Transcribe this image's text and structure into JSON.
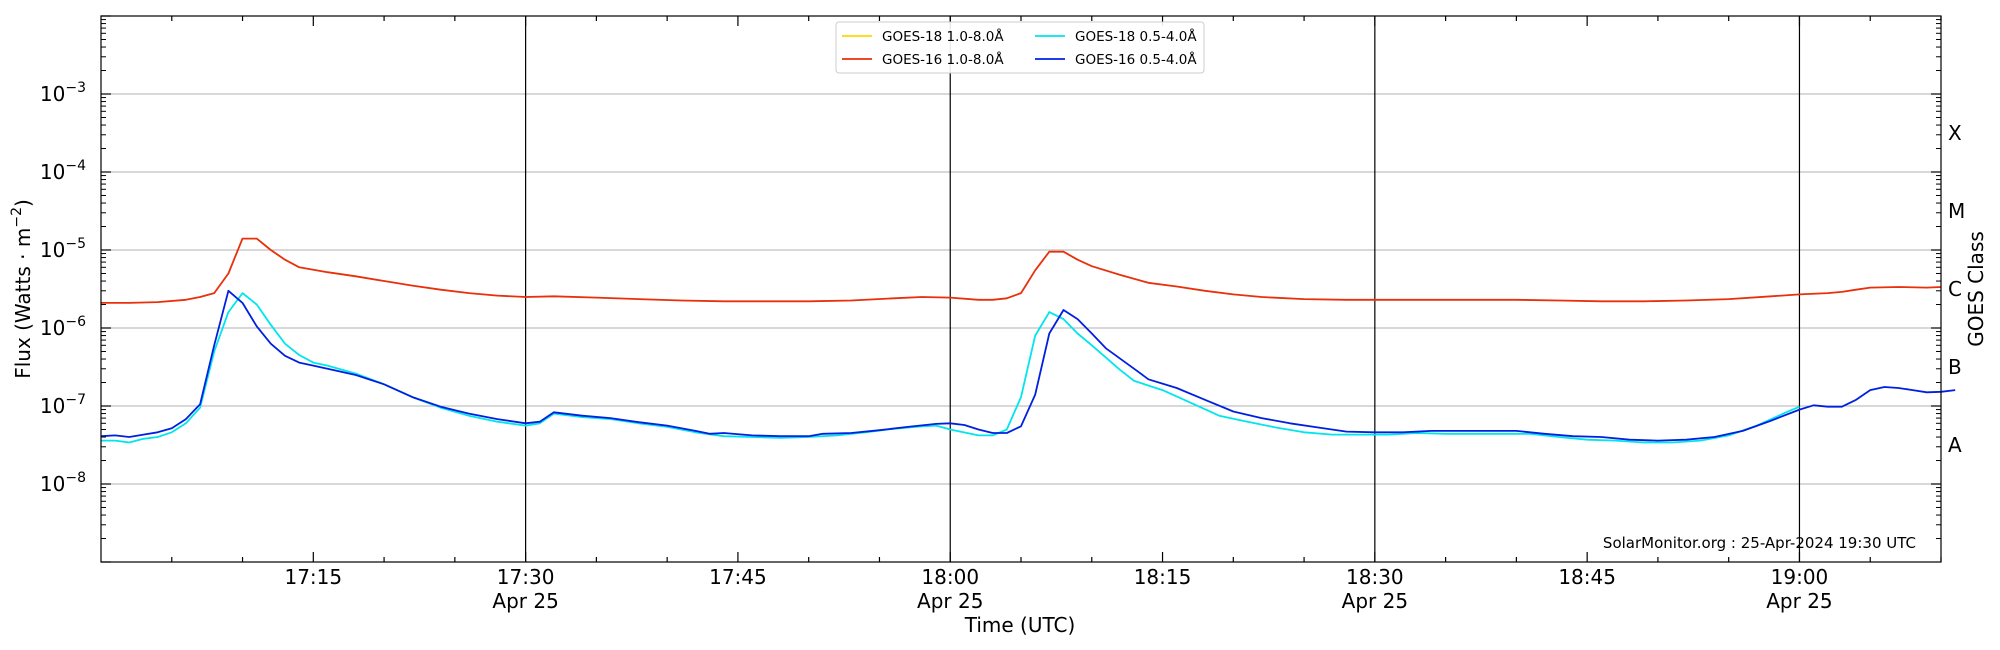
{
  "chart_data": {
    "type": "line",
    "title": "",
    "xlabel": "Time (UTC)",
    "ylabel": "Flux (Watts · m",
    "ylabel_sup": "−2",
    "ylabel_close": ")",
    "ylabel_right": "GOES Class",
    "yscale": "log",
    "ylim": [
      1e-09,
      0.01
    ],
    "xlim": [
      "17:03",
      "19:13"
    ],
    "x_tick_labels": [
      {
        "t": 15,
        "time": "17:15",
        "date": ""
      },
      {
        "t": 30,
        "time": "17:30",
        "date": "Apr 25"
      },
      {
        "t": 45,
        "time": "17:45",
        "date": ""
      },
      {
        "t": 60,
        "time": "18:00",
        "date": "Apr 25"
      },
      {
        "t": 75,
        "time": "18:15",
        "date": ""
      },
      {
        "t": 90,
        "time": "18:30",
        "date": "Apr 25"
      },
      {
        "t": 105,
        "time": "18:45",
        "date": ""
      },
      {
        "t": 120,
        "time": "19:00",
        "date": "Apr 25"
      }
    ],
    "y_tick_labels": [
      {
        "exp": -8,
        "base": "10",
        "sup": "−8"
      },
      {
        "exp": -7,
        "base": "10",
        "sup": "−7"
      },
      {
        "exp": -6,
        "base": "10",
        "sup": "−6"
      },
      {
        "exp": -5,
        "base": "10",
        "sup": "−5"
      },
      {
        "exp": -4,
        "base": "10",
        "sup": "−4"
      },
      {
        "exp": -3,
        "base": "10",
        "sup": "−3"
      }
    ],
    "goes_classes": [
      {
        "label": "A",
        "exp": -7.5
      },
      {
        "label": "B",
        "exp": -6.5
      },
      {
        "label": "C",
        "exp": -5.5
      },
      {
        "label": "M",
        "exp": -4.5
      },
      {
        "label": "X",
        "exp": -3.5
      }
    ],
    "vertical_lines": [
      30,
      60,
      90,
      120
    ],
    "annotation": "SolarMonitor.org : 25-Apr-2024 19:30 UTC",
    "grid": "horizontal",
    "legend_position": "top-center",
    "series": [
      {
        "name": "GOES-18 1.0-8.0Å",
        "color": "#ffd700",
        "points": []
      },
      {
        "name": "GOES-16 1.0-8.0Å",
        "color": "#e8300a",
        "points": [
          [
            0,
            2.1e-06
          ],
          [
            2,
            2.1e-06
          ],
          [
            4,
            2.15e-06
          ],
          [
            6,
            2.3e-06
          ],
          [
            7,
            2.5e-06
          ],
          [
            8,
            2.8e-06
          ],
          [
            9,
            5e-06
          ],
          [
            10,
            1.4e-05
          ],
          [
            11,
            1.4e-05
          ],
          [
            12,
            1e-05
          ],
          [
            13,
            7.5e-06
          ],
          [
            14,
            6e-06
          ],
          [
            16,
            5.2e-06
          ],
          [
            18,
            4.6e-06
          ],
          [
            20,
            4e-06
          ],
          [
            22,
            3.5e-06
          ],
          [
            24,
            3.1e-06
          ],
          [
            26,
            2.8e-06
          ],
          [
            28,
            2.6e-06
          ],
          [
            30,
            2.5e-06
          ],
          [
            32,
            2.55e-06
          ],
          [
            35,
            2.45e-06
          ],
          [
            38,
            2.35e-06
          ],
          [
            41,
            2.25e-06
          ],
          [
            44,
            2.2e-06
          ],
          [
            47,
            2.2e-06
          ],
          [
            50,
            2.2e-06
          ],
          [
            53,
            2.25e-06
          ],
          [
            56,
            2.4e-06
          ],
          [
            58,
            2.5e-06
          ],
          [
            60,
            2.45e-06
          ],
          [
            62,
            2.3e-06
          ],
          [
            63,
            2.3e-06
          ],
          [
            64,
            2.4e-06
          ],
          [
            65,
            2.8e-06
          ],
          [
            66,
            5.5e-06
          ],
          [
            67,
            9.5e-06
          ],
          [
            68,
            9.5e-06
          ],
          [
            69,
            7.5e-06
          ],
          [
            70,
            6.2e-06
          ],
          [
            72,
            4.8e-06
          ],
          [
            74,
            3.8e-06
          ],
          [
            76,
            3.4e-06
          ],
          [
            78,
            3e-06
          ],
          [
            80,
            2.7e-06
          ],
          [
            82,
            2.5e-06
          ],
          [
            85,
            2.35e-06
          ],
          [
            88,
            2.3e-06
          ],
          [
            91,
            2.3e-06
          ],
          [
            94,
            2.3e-06
          ],
          [
            97,
            2.3e-06
          ],
          [
            100,
            2.3e-06
          ],
          [
            103,
            2.25e-06
          ],
          [
            106,
            2.2e-06
          ],
          [
            109,
            2.2e-06
          ],
          [
            112,
            2.25e-06
          ],
          [
            115,
            2.35e-06
          ],
          [
            118,
            2.55e-06
          ],
          [
            120,
            2.7e-06
          ],
          [
            122,
            2.8e-06
          ],
          [
            123,
            2.9e-06
          ],
          [
            124,
            3.1e-06
          ],
          [
            125,
            3.3e-06
          ],
          [
            127,
            3.35e-06
          ],
          [
            129,
            3.3e-06
          ],
          [
            130,
            3.35e-06
          ]
        ]
      },
      {
        "name": "GOES-18 0.5-4.0Å",
        "color": "#00e5ee",
        "points": [
          [
            0,
            3.6e-08
          ],
          [
            1,
            3.6e-08
          ],
          [
            2,
            3.4e-08
          ],
          [
            3,
            3.8e-08
          ],
          [
            4,
            4e-08
          ],
          [
            5,
            4.6e-08
          ],
          [
            6,
            6e-08
          ],
          [
            7,
            9.5e-08
          ],
          [
            8,
            5e-07
          ],
          [
            9,
            1.6e-06
          ],
          [
            10,
            2.8e-06
          ],
          [
            11,
            2e-06
          ],
          [
            12,
            1.1e-06
          ],
          [
            13,
            6.3e-07
          ],
          [
            14,
            4.5e-07
          ],
          [
            15,
            3.6e-07
          ],
          [
            16,
            3.3e-07
          ],
          [
            18,
            2.6e-07
          ],
          [
            20,
            1.9e-07
          ],
          [
            22,
            1.3e-07
          ],
          [
            24,
            9.5e-08
          ],
          [
            26,
            7.5e-08
          ],
          [
            28,
            6.3e-08
          ],
          [
            30,
            5.6e-08
          ],
          [
            31,
            6e-08
          ],
          [
            32,
            8e-08
          ],
          [
            34,
            7.2e-08
          ],
          [
            36,
            6.8e-08
          ],
          [
            38,
            6e-08
          ],
          [
            40,
            5.4e-08
          ],
          [
            42,
            4.6e-08
          ],
          [
            44,
            4.1e-08
          ],
          [
            46,
            4e-08
          ],
          [
            48,
            3.9e-08
          ],
          [
            50,
            4e-08
          ],
          [
            52,
            4.2e-08
          ],
          [
            54,
            4.6e-08
          ],
          [
            56,
            5.1e-08
          ],
          [
            58,
            5.5e-08
          ],
          [
            59,
            5.6e-08
          ],
          [
            60,
            5e-08
          ],
          [
            62,
            4.2e-08
          ],
          [
            63,
            4.2e-08
          ],
          [
            64,
            5e-08
          ],
          [
            65,
            1.3e-07
          ],
          [
            66,
            8e-07
          ],
          [
            67,
            1.6e-06
          ],
          [
            68,
            1.3e-06
          ],
          [
            69,
            8.5e-07
          ],
          [
            70,
            6e-07
          ],
          [
            72,
            2.9e-07
          ],
          [
            73,
            2.1e-07
          ],
          [
            75,
            1.6e-07
          ],
          [
            77,
            1.1e-07
          ],
          [
            79,
            7.5e-08
          ],
          [
            81,
            6.3e-08
          ],
          [
            83,
            5.3e-08
          ],
          [
            85,
            4.6e-08
          ],
          [
            87,
            4.3e-08
          ],
          [
            89,
            4.3e-08
          ],
          [
            91,
            4.3e-08
          ],
          [
            93,
            4.5e-08
          ],
          [
            95,
            4.4e-08
          ],
          [
            97,
            4.4e-08
          ],
          [
            99,
            4.4e-08
          ],
          [
            101,
            4.4e-08
          ],
          [
            103,
            4e-08
          ],
          [
            105,
            3.7e-08
          ],
          [
            107,
            3.6e-08
          ],
          [
            109,
            3.4e-08
          ],
          [
            111,
            3.4e-08
          ],
          [
            113,
            3.6e-08
          ],
          [
            115,
            4.2e-08
          ],
          [
            117,
            5.6e-08
          ],
          [
            119,
            8.2e-08
          ],
          [
            120,
            9.8e-08
          ]
        ]
      },
      {
        "name": "GOES-16 0.5-4.0Å",
        "color": "#0020e0",
        "points": [
          [
            0,
            4.1e-08
          ],
          [
            1,
            4.2e-08
          ],
          [
            2,
            4e-08
          ],
          [
            3,
            4.3e-08
          ],
          [
            4,
            4.6e-08
          ],
          [
            5,
            5.2e-08
          ],
          [
            6,
            6.8e-08
          ],
          [
            7,
            1.05e-07
          ],
          [
            8,
            6e-07
          ],
          [
            9,
            3e-06
          ],
          [
            10,
            2.1e-06
          ],
          [
            11,
            1.05e-06
          ],
          [
            12,
            6.3e-07
          ],
          [
            13,
            4.4e-07
          ],
          [
            14,
            3.6e-07
          ],
          [
            15,
            3.3e-07
          ],
          [
            16,
            3e-07
          ],
          [
            18,
            2.5e-07
          ],
          [
            20,
            1.9e-07
          ],
          [
            22,
            1.3e-07
          ],
          [
            24,
            9.8e-08
          ],
          [
            26,
            8e-08
          ],
          [
            28,
            6.8e-08
          ],
          [
            30,
            6e-08
          ],
          [
            31,
            6.3e-08
          ],
          [
            32,
            8.3e-08
          ],
          [
            34,
            7.5e-08
          ],
          [
            36,
            7e-08
          ],
          [
            38,
            6.2e-08
          ],
          [
            40,
            5.6e-08
          ],
          [
            42,
            4.8e-08
          ],
          [
            43,
            4.4e-08
          ],
          [
            44,
            4.5e-08
          ],
          [
            46,
            4.2e-08
          ],
          [
            48,
            4.1e-08
          ],
          [
            50,
            4.1e-08
          ],
          [
            51,
            4.4e-08
          ],
          [
            53,
            4.5e-08
          ],
          [
            55,
            4.9e-08
          ],
          [
            57,
            5.4e-08
          ],
          [
            59,
            5.9e-08
          ],
          [
            60,
            6e-08
          ],
          [
            61,
            5.7e-08
          ],
          [
            62,
            5e-08
          ],
          [
            63,
            4.5e-08
          ],
          [
            64,
            4.5e-08
          ],
          [
            65,
            5.5e-08
          ],
          [
            66,
            1.4e-07
          ],
          [
            67,
            8.5e-07
          ],
          [
            68,
            1.7e-06
          ],
          [
            69,
            1.3e-06
          ],
          [
            70,
            8.5e-07
          ],
          [
            71,
            5.5e-07
          ],
          [
            73,
            3e-07
          ],
          [
            74,
            2.2e-07
          ],
          [
            76,
            1.7e-07
          ],
          [
            78,
            1.2e-07
          ],
          [
            80,
            8.5e-08
          ],
          [
            82,
            7e-08
          ],
          [
            84,
            6e-08
          ],
          [
            86,
            5.3e-08
          ],
          [
            88,
            4.7e-08
          ],
          [
            90,
            4.6e-08
          ],
          [
            92,
            4.6e-08
          ],
          [
            94,
            4.8e-08
          ],
          [
            96,
            4.8e-08
          ],
          [
            98,
            4.8e-08
          ],
          [
            100,
            4.8e-08
          ],
          [
            102,
            4.4e-08
          ],
          [
            104,
            4.1e-08
          ],
          [
            106,
            4e-08
          ],
          [
            108,
            3.7e-08
          ],
          [
            110,
            3.6e-08
          ],
          [
            112,
            3.7e-08
          ],
          [
            114,
            4e-08
          ],
          [
            116,
            4.8e-08
          ],
          [
            118,
            6.5e-08
          ],
          [
            120,
            9e-08
          ],
          [
            121,
            1.02e-07
          ],
          [
            122,
            9.8e-08
          ],
          [
            123,
            9.8e-08
          ],
          [
            124,
            1.2e-07
          ],
          [
            125,
            1.6e-07
          ],
          [
            126,
            1.75e-07
          ],
          [
            127,
            1.7e-07
          ],
          [
            128,
            1.6e-07
          ],
          [
            129,
            1.5e-07
          ],
          [
            130,
            1.52e-07
          ],
          [
            131,
            1.6e-07
          ]
        ]
      }
    ]
  }
}
